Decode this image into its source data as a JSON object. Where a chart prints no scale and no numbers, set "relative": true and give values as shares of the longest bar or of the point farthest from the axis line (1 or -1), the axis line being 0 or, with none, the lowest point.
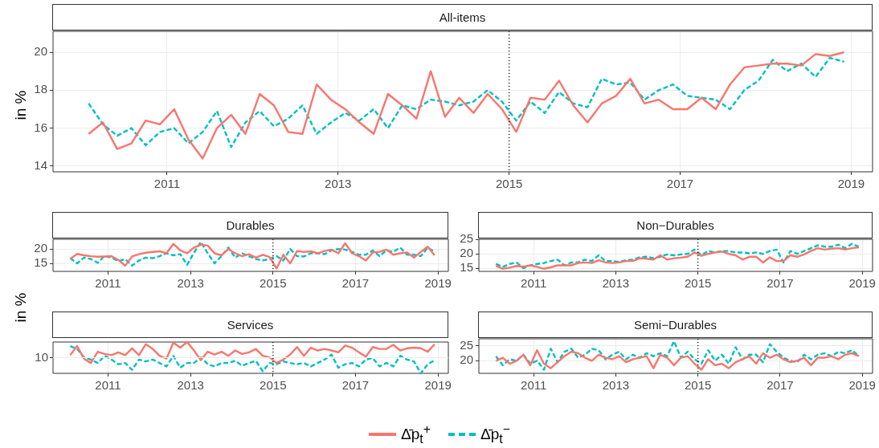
{
  "chart_data": [
    {
      "type": "line",
      "title": "All-items",
      "ylabel": "in %",
      "legend": "bottom",
      "grid": true,
      "xlim": [
        "2009-09",
        "2019-04"
      ],
      "xticks": [
        "2011",
        "2013",
        "2015",
        "2017",
        "2019"
      ],
      "ylim": [
        13.7,
        21.1
      ],
      "yticks": [
        14,
        16,
        18,
        20
      ],
      "ref_lines": [
        {
          "axis": "x",
          "value": "2015-01",
          "color": "#000000",
          "line_style": "dotted"
        }
      ],
      "x": [
        "2010-02",
        "2010-04",
        "2010-06",
        "2010-08",
        "2010-10",
        "2010-12",
        "2011-02",
        "2011-04",
        "2011-06",
        "2011-08",
        "2011-10",
        "2011-12",
        "2012-02",
        "2012-04",
        "2012-06",
        "2012-08",
        "2012-10",
        "2012-12",
        "2013-02",
        "2013-04",
        "2013-06",
        "2013-08",
        "2013-10",
        "2013-12",
        "2014-02",
        "2014-04",
        "2014-06",
        "2014-08",
        "2014-10",
        "2014-12",
        "2015-02",
        "2015-04",
        "2015-06",
        "2015-08",
        "2015-10",
        "2015-12",
        "2016-02",
        "2016-04",
        "2016-06",
        "2016-08",
        "2016-10",
        "2016-12",
        "2017-02",
        "2017-04",
        "2017-06",
        "2017-08",
        "2017-10",
        "2017-12",
        "2018-02",
        "2018-04",
        "2018-06",
        "2018-08",
        "2018-10",
        "2018-12"
      ],
      "series": [
        {
          "name": "Δ̄p$_{t}$$^{+}$",
          "color": "#f8766d",
          "line_style": "solid",
          "values": [
            15.7,
            16.3,
            14.9,
            15.2,
            16.4,
            16.2,
            17.0,
            15.4,
            14.4,
            16.0,
            16.7,
            15.7,
            17.8,
            17.2,
            15.8,
            15.7,
            18.3,
            17.5,
            17.0,
            16.3,
            15.7,
            17.8,
            17.2,
            16.5,
            19.0,
            16.6,
            17.6,
            16.8,
            17.8,
            17.0,
            15.8,
            17.6,
            17.5,
            18.5,
            17.2,
            16.3,
            17.3,
            17.7,
            18.6,
            17.3,
            17.5,
            17.0,
            17.0,
            17.6,
            17.0,
            18.3,
            19.2,
            19.3,
            19.4,
            19.4,
            19.3,
            19.9,
            19.8,
            20.0
          ]
        },
        {
          "name": "Δ̄p$_{t}$$^{−}$",
          "color": "#00bfc4",
          "line_style": "dashed",
          "values": [
            17.3,
            16.2,
            15.6,
            16.0,
            15.1,
            15.8,
            16.0,
            15.2,
            15.8,
            16.9,
            15.0,
            16.3,
            16.9,
            16.1,
            16.5,
            17.2,
            15.7,
            16.3,
            16.8,
            16.4,
            17.0,
            16.0,
            17.2,
            17.0,
            17.5,
            17.4,
            17.2,
            17.4,
            18.0,
            17.4,
            16.4,
            17.4,
            16.8,
            17.9,
            17.3,
            17.1,
            18.6,
            18.3,
            18.4,
            17.5,
            18.0,
            18.3,
            17.7,
            17.6,
            17.5,
            17.0,
            18.0,
            18.5,
            19.6,
            19.0,
            19.4,
            18.7,
            19.7,
            19.5
          ]
        }
      ]
    },
    {
      "type": "line",
      "title": "Durables",
      "ylabel": "in %",
      "grid": true,
      "xlim": [
        "2009-09",
        "2019-04"
      ],
      "xticks": [
        "2011",
        "2013",
        "2015",
        "2017",
        "2019"
      ],
      "ylim": [
        12.2,
        23.4
      ],
      "yticks": [
        15,
        20
      ],
      "ref_lines": [
        {
          "axis": "x",
          "value": "2015-01",
          "color": "#000000",
          "line_style": "dotted"
        }
      ],
      "x": [
        "2010-02",
        "2010-04",
        "2010-06",
        "2010-08",
        "2010-10",
        "2010-12",
        "2011-02",
        "2011-04",
        "2011-06",
        "2011-08",
        "2011-10",
        "2011-12",
        "2012-02",
        "2012-04",
        "2012-06",
        "2012-08",
        "2012-10",
        "2012-12",
        "2013-02",
        "2013-04",
        "2013-06",
        "2013-08",
        "2013-10",
        "2013-12",
        "2014-02",
        "2014-04",
        "2014-06",
        "2014-08",
        "2014-10",
        "2014-12",
        "2015-02",
        "2015-04",
        "2015-06",
        "2015-08",
        "2015-10",
        "2015-12",
        "2016-02",
        "2016-04",
        "2016-06",
        "2016-08",
        "2016-10",
        "2016-12",
        "2017-02",
        "2017-04",
        "2017-06",
        "2017-08",
        "2017-10",
        "2017-12",
        "2018-02",
        "2018-04",
        "2018-06",
        "2018-08",
        "2018-10",
        "2018-12"
      ],
      "series": [
        {
          "color": "#f8766d",
          "line_style": "solid",
          "values": [
            16.5,
            18.3,
            17.8,
            17.5,
            17.3,
            17.4,
            17.5,
            16.2,
            14.2,
            17.4,
            18.2,
            18.7,
            19.0,
            19.2,
            18.5,
            21.8,
            19.5,
            18.5,
            20.5,
            21.5,
            21.2,
            18.5,
            17.8,
            20.0,
            18.5,
            17.5,
            18.2,
            17.0,
            18.0,
            17.2,
            13.2,
            18.0,
            15.0,
            19.3,
            19.0,
            19.2,
            18.5,
            19.3,
            19.8,
            18.5,
            22.0,
            18.5,
            17.5,
            16.0,
            18.8,
            19.0,
            19.8,
            18.0,
            18.5,
            18.8,
            17.0,
            19.0,
            20.8,
            17.8
          ]
        },
        {
          "color": "#00bfc4",
          "line_style": "dashed",
          "values": [
            16.8,
            15.0,
            17.0,
            16.5,
            15.2,
            17.6,
            17.0,
            15.8,
            16.5,
            14.2,
            16.0,
            17.0,
            16.8,
            17.5,
            18.5,
            17.8,
            18.2,
            14.5,
            18.7,
            22.5,
            18.5,
            15.0,
            17.5,
            20.5,
            17.0,
            18.5,
            17.5,
            16.5,
            16.0,
            16.5,
            17.5,
            16.0,
            20.0,
            17.5,
            17.4,
            18.5,
            18.5,
            18.2,
            19.5,
            20.0,
            19.8,
            19.0,
            18.0,
            18.0,
            19.5,
            17.5,
            19.5,
            19.0,
            20.5,
            18.0,
            18.0,
            17.5,
            20.5,
            19.0
          ]
        }
      ]
    },
    {
      "type": "line",
      "title": "Non−Durables",
      "grid": true,
      "xlim": [
        "2009-09",
        "2019-04"
      ],
      "xticks": [
        "2011",
        "2013",
        "2015",
        "2017",
        "2019"
      ],
      "ylim": [
        13.9,
        25.1
      ],
      "yticks": [
        15,
        20,
        25
      ],
      "ref_lines": [
        {
          "axis": "x",
          "value": "2015-01",
          "color": "#000000",
          "line_style": "dotted"
        }
      ],
      "x": [
        "2010-02",
        "2010-04",
        "2010-06",
        "2010-08",
        "2010-10",
        "2010-12",
        "2011-02",
        "2011-04",
        "2011-06",
        "2011-08",
        "2011-10",
        "2011-12",
        "2012-02",
        "2012-04",
        "2012-06",
        "2012-08",
        "2012-10",
        "2012-12",
        "2013-02",
        "2013-04",
        "2013-06",
        "2013-08",
        "2013-10",
        "2013-12",
        "2014-02",
        "2014-04",
        "2014-06",
        "2014-08",
        "2014-10",
        "2014-12",
        "2015-02",
        "2015-04",
        "2015-06",
        "2015-08",
        "2015-10",
        "2015-12",
        "2016-02",
        "2016-04",
        "2016-06",
        "2016-08",
        "2016-10",
        "2016-12",
        "2017-02",
        "2017-04",
        "2017-06",
        "2017-08",
        "2017-10",
        "2017-12",
        "2018-02",
        "2018-04",
        "2018-06",
        "2018-08",
        "2018-10",
        "2018-12"
      ],
      "series": [
        {
          "color": "#f8766d",
          "line_style": "solid",
          "values": [
            15.8,
            14.8,
            15.2,
            15.8,
            15.5,
            16.0,
            15.5,
            14.8,
            15.3,
            16.0,
            16.0,
            16.0,
            16.8,
            17.0,
            16.8,
            17.8,
            17.0,
            16.8,
            17.0,
            17.5,
            17.5,
            18.5,
            18.3,
            18.0,
            19.5,
            18.0,
            18.5,
            18.7,
            19.0,
            20.5,
            19.3,
            20.0,
            20.5,
            20.8,
            20.0,
            19.5,
            18.0,
            19.0,
            19.0,
            17.0,
            18.8,
            17.5,
            17.5,
            19.5,
            19.0,
            19.8,
            21.0,
            22.0,
            21.5,
            21.8,
            22.0,
            21.5,
            22.0,
            22.3
          ]
        },
        {
          "color": "#00bfc4",
          "line_style": "dashed",
          "values": [
            16.5,
            15.5,
            16.5,
            17.0,
            15.0,
            16.0,
            16.5,
            16.8,
            17.5,
            18.0,
            16.0,
            17.0,
            17.0,
            18.0,
            17.5,
            19.5,
            17.5,
            17.5,
            17.2,
            17.8,
            18.0,
            18.8,
            19.0,
            18.5,
            19.0,
            19.8,
            19.5,
            19.8,
            20.0,
            21.5,
            19.5,
            21.0,
            20.5,
            21.0,
            21.0,
            20.5,
            20.5,
            20.2,
            20.5,
            20.0,
            21.0,
            21.5,
            17.0,
            21.0,
            20.0,
            21.0,
            22.0,
            23.0,
            22.5,
            22.5,
            23.2,
            22.0,
            23.5,
            22.5
          ]
        }
      ]
    },
    {
      "type": "line",
      "title": "Services",
      "relative": true,
      "grid": "x",
      "xlim": [
        "2009-09",
        "2019-04"
      ],
      "xticks": [
        "2011",
        "2013",
        "2015",
        "2017",
        "2019"
      ],
      "annotations": [
        "10"
      ],
      "ref_lines": [
        {
          "axis": "x",
          "value": "2015-01",
          "color": "#000000",
          "line_style": "dotted"
        }
      ],
      "x": [
        "2010-02",
        "2010-04",
        "2010-06",
        "2010-08",
        "2010-10",
        "2010-12",
        "2011-02",
        "2011-04",
        "2011-06",
        "2011-08",
        "2011-10",
        "2011-12",
        "2012-02",
        "2012-04",
        "2012-06",
        "2012-08",
        "2012-10",
        "2012-12",
        "2013-02",
        "2013-04",
        "2013-06",
        "2013-08",
        "2013-10",
        "2013-12",
        "2014-02",
        "2014-04",
        "2014-06",
        "2014-08",
        "2014-10",
        "2014-12",
        "2015-02",
        "2015-04",
        "2015-06",
        "2015-08",
        "2015-10",
        "2015-12",
        "2016-02",
        "2016-04",
        "2016-06",
        "2016-08",
        "2016-10",
        "2016-12",
        "2017-02",
        "2017-04",
        "2017-06",
        "2017-08",
        "2017-10",
        "2017-12",
        "2018-02",
        "2018-04",
        "2018-06",
        "2018-08",
        "2018-10",
        "2018-12"
      ],
      "series": [
        {
          "color": "#f8766d",
          "line_style": "solid",
          "values": [
            0.58,
            0.87,
            0.47,
            0.33,
            0.69,
            0.62,
            0.58,
            0.67,
            0.58,
            0.8,
            0.58,
            0.93,
            0.78,
            0.56,
            0.47,
            0.98,
            0.82,
            1,
            0.73,
            0.42,
            0.69,
            0.6,
            0.69,
            0.56,
            0.73,
            0.62,
            0.67,
            0.78,
            0.56,
            0.51,
            0.33,
            0.44,
            0.6,
            0.84,
            0.56,
            0.82,
            0.73,
            0.78,
            0.73,
            0.67,
            0.89,
            0.82,
            0.67,
            0.53,
            0.84,
            0.78,
            0.78,
            0.91,
            0.73,
            0.8,
            0.82,
            0.8,
            0.69,
            0.93
          ]
        },
        {
          "color": "#00bfc4",
          "line_style": "dashed",
          "values": [
            0.87,
            0.78,
            0.51,
            0.44,
            0.33,
            0.56,
            0.44,
            0.29,
            0.33,
            0.11,
            0.44,
            0.38,
            0.44,
            0.33,
            0.22,
            0.56,
            0.18,
            0.33,
            0.33,
            0.51,
            0.29,
            0.22,
            0.33,
            0.33,
            0.4,
            0.24,
            0.33,
            0.4,
            0.07,
            0.33,
            0.29,
            0.38,
            0.33,
            0.29,
            0.33,
            0.22,
            0.33,
            0.44,
            0.6,
            0.18,
            0.29,
            0.33,
            0.22,
            0.44,
            0.49,
            0.22,
            0.33,
            0.22,
            0.56,
            0.44,
            0.38,
            0,
            0.29,
            0.42
          ]
        }
      ]
    },
    {
      "type": "line",
      "title": "Semi−Durables",
      "grid": true,
      "xlim": [
        "2009-09",
        "2019-04"
      ],
      "xticks": [
        "2011",
        "2013",
        "2015",
        "2017",
        "2019"
      ],
      "ylim": [
        15.8,
        27.3
      ],
      "yticks": [
        20,
        25
      ],
      "ref_lines": [
        {
          "axis": "x",
          "value": "2015-01",
          "color": "#000000",
          "line_style": "dotted"
        }
      ],
      "x": [
        "2010-02",
        "2010-04",
        "2010-06",
        "2010-08",
        "2010-10",
        "2010-12",
        "2011-02",
        "2011-04",
        "2011-06",
        "2011-08",
        "2011-10",
        "2011-12",
        "2012-02",
        "2012-04",
        "2012-06",
        "2012-08",
        "2012-10",
        "2012-12",
        "2013-02",
        "2013-04",
        "2013-06",
        "2013-08",
        "2013-10",
        "2013-12",
        "2014-02",
        "2014-04",
        "2014-06",
        "2014-08",
        "2014-10",
        "2014-12",
        "2015-02",
        "2015-04",
        "2015-06",
        "2015-08",
        "2015-10",
        "2015-12",
        "2016-02",
        "2016-04",
        "2016-06",
        "2016-08",
        "2016-10",
        "2016-12",
        "2017-02",
        "2017-04",
        "2017-06",
        "2017-08",
        "2017-10",
        "2017-12",
        "2018-02",
        "2018-04",
        "2018-06",
        "2018-08",
        "2018-10",
        "2018-12"
      ],
      "series": [
        {
          "color": "#f8766d",
          "line_style": "solid",
          "values": [
            20.0,
            21.0,
            19.0,
            20.0,
            22.0,
            18.5,
            23.5,
            19.0,
            17.5,
            19.5,
            21.5,
            23.0,
            22.5,
            21.0,
            20.0,
            22.0,
            21.0,
            20.5,
            21.5,
            19.5,
            20.5,
            21.0,
            21.5,
            17.5,
            22.0,
            21.0,
            18.5,
            21.0,
            21.5,
            19.0,
            17.0,
            20.5,
            18.5,
            19.0,
            17.5,
            19.5,
            20.5,
            21.5,
            19.0,
            22.5,
            21.0,
            22.0,
            20.5,
            19.5,
            20.0,
            21.0,
            18.5,
            21.0,
            21.0,
            21.5,
            20.5,
            22.0,
            22.5,
            21.5
          ]
        },
        {
          "color": "#00bfc4",
          "line_style": "dashed",
          "values": [
            21.5,
            18.5,
            20.5,
            20.0,
            22.0,
            19.0,
            20.0,
            17.0,
            24.0,
            19.5,
            23.0,
            24.0,
            21.0,
            22.0,
            24.0,
            23.5,
            20.5,
            22.0,
            23.0,
            20.5,
            22.0,
            21.0,
            22.5,
            21.5,
            22.5,
            21.5,
            26.5,
            21.0,
            23.0,
            20.5,
            19.0,
            23.5,
            20.0,
            22.0,
            19.0,
            24.5,
            20.5,
            22.0,
            22.0,
            19.5,
            25.5,
            23.0,
            21.0,
            20.0,
            19.5,
            22.0,
            20.5,
            22.0,
            22.5,
            21.5,
            23.0,
            22.5,
            23.5,
            21.5
          ]
        }
      ]
    }
  ]
}
